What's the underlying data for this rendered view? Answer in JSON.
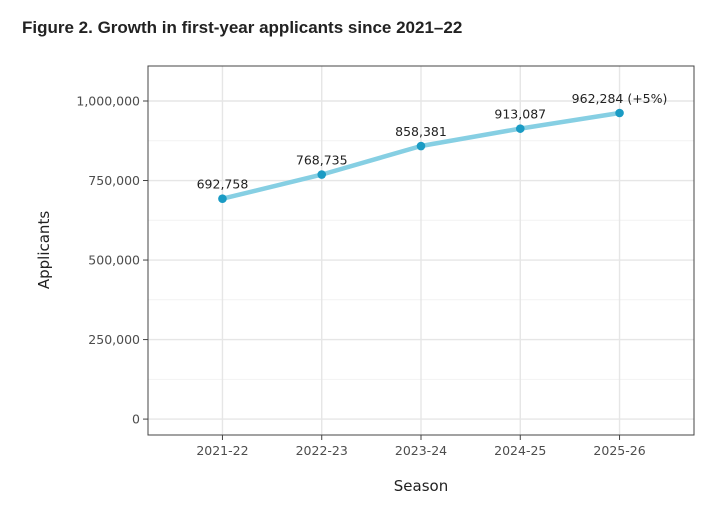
{
  "chart_data": {
    "type": "line",
    "title": "Figure 2. Growth in first-year applicants since 2021–22",
    "xlabel": "Season",
    "ylabel": "Applicants",
    "categories": [
      "2021-22",
      "2022-23",
      "2023-24",
      "2024-25",
      "2025-26"
    ],
    "values": [
      692758,
      768735,
      858381,
      913087,
      962284
    ],
    "data_labels": [
      "692,758",
      "768,735",
      "858,381",
      "913,087",
      "962,284 (+5%)"
    ],
    "y_ticks": [
      0,
      250000,
      500000,
      750000,
      1000000
    ],
    "y_tick_labels": [
      "0",
      "250,000",
      "500,000",
      "750,000",
      "1,000,000"
    ],
    "ylim": [
      -50000,
      1110000
    ],
    "grid": true,
    "colors": {
      "line": "#86cfe3",
      "point": "#1a9bc4",
      "grid_major": "#e6e6e6",
      "grid_minor": "#f2f2f2",
      "frame": "#444444",
      "text": "#222222",
      "tick_text": "#4d4d4d"
    }
  }
}
